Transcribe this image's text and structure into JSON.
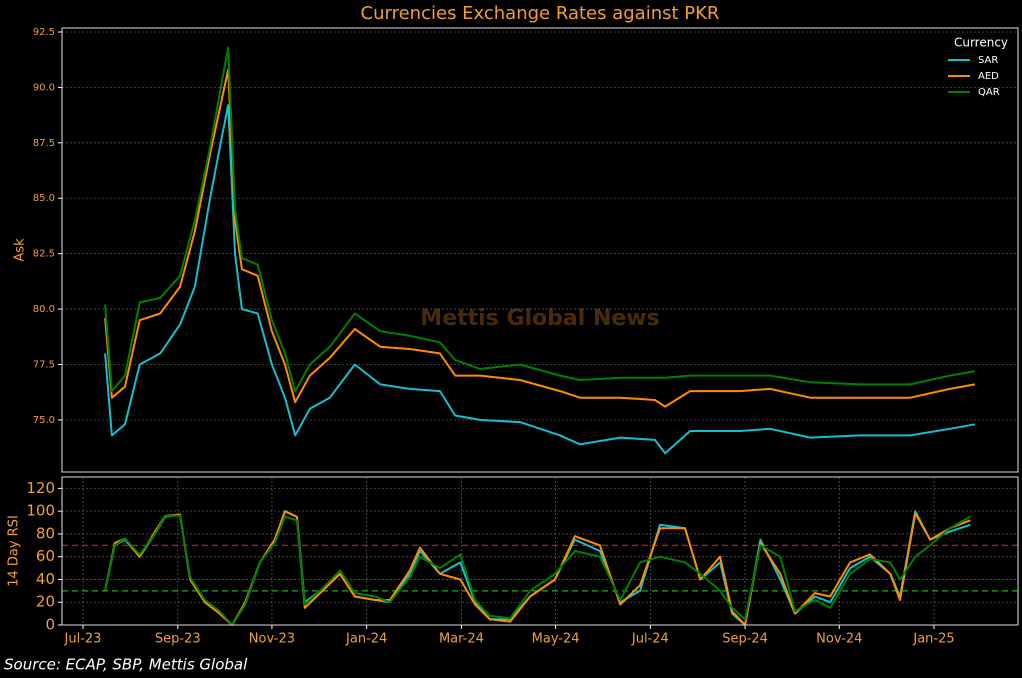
{
  "chart_data": [
    {
      "type": "line",
      "title": "Currencies Exchange Rates against PKR",
      "y_label": "Ask",
      "legend_title": "Currency",
      "legend": "upper right",
      "grid": true,
      "watermark": "Mettis Global News",
      "xlim": [
        2023.463,
        2025.148
      ],
      "ylim": [
        72.65,
        92.68
      ],
      "yticks": [
        {
          "value": 75,
          "label": "75.0"
        },
        77.5,
        {
          "value": 80,
          "label": "80.0"
        },
        82.5,
        {
          "value": 85,
          "label": "85.0"
        },
        87.5,
        {
          "value": 90,
          "label": "90.0"
        },
        92.5
      ],
      "x": [
        2023.539,
        2023.551,
        2023.574,
        2023.6,
        2023.636,
        2023.671,
        2023.697,
        2023.724,
        2023.745,
        2023.756,
        2023.768,
        2023.78,
        2023.808,
        2023.833,
        2023.856,
        2023.874,
        2023.9,
        2023.935,
        2023.979,
        2024.024,
        2024.076,
        2024.129,
        2024.156,
        2024.2,
        2024.27,
        2024.341,
        2024.376,
        2024.447,
        2024.508,
        2024.526,
        2024.57,
        2024.658,
        2024.711,
        2024.782,
        2024.87,
        2024.958,
        2025.028,
        2025.072
      ],
      "series": [
        {
          "name": "SAR",
          "color": "#17becf",
          "values": [
            78.0,
            74.3,
            74.8,
            77.5,
            78.0,
            79.3,
            81.0,
            85.0,
            87.8,
            89.2,
            82.5,
            80.0,
            79.8,
            77.5,
            76.0,
            74.3,
            75.5,
            76.0,
            77.5,
            76.6,
            76.4,
            76.3,
            75.2,
            75.0,
            74.9,
            74.3,
            73.9,
            74.2,
            74.1,
            73.5,
            74.5,
            74.5,
            74.6,
            74.2,
            74.3,
            74.3,
            74.6,
            74.8
          ]
        },
        {
          "name": "AED",
          "color": "#ff8c00",
          "values": [
            79.6,
            76.0,
            76.5,
            79.5,
            79.8,
            81.0,
            83.5,
            87.0,
            89.5,
            90.8,
            84.0,
            81.8,
            81.5,
            79.0,
            77.5,
            75.8,
            77.0,
            77.8,
            79.1,
            78.3,
            78.2,
            78.0,
            77.0,
            77.0,
            76.8,
            76.3,
            76.0,
            76.0,
            75.9,
            75.6,
            76.3,
            76.3,
            76.4,
            76.0,
            76.0,
            76.0,
            76.4,
            76.6
          ]
        },
        {
          "name": "QAR",
          "color": "#008000",
          "values": [
            80.2,
            76.3,
            77.0,
            80.3,
            80.5,
            81.5,
            84.0,
            87.3,
            90.3,
            91.8,
            84.5,
            82.3,
            82.0,
            79.5,
            78.0,
            76.3,
            77.5,
            78.3,
            79.8,
            79.0,
            78.8,
            78.5,
            77.7,
            77.3,
            77.5,
            77.0,
            76.8,
            76.9,
            76.9,
            76.9,
            77.0,
            77.0,
            77.0,
            76.7,
            76.6,
            76.6,
            77.0,
            77.2
          ]
        }
      ]
    },
    {
      "type": "line",
      "y_label": "14 Day RSI",
      "grid": true,
      "source": "Source: ECAP, SBP, Mettis Global",
      "xlim": [
        2023.463,
        2025.148
      ],
      "ylim": [
        0,
        130
      ],
      "yticks": [
        0,
        20,
        40,
        60,
        80,
        100,
        120
      ],
      "xticks": [
        {
          "value": 2023.5,
          "label": "Jul-23"
        },
        {
          "value": 2023.667,
          "label": "Sep-23"
        },
        {
          "value": 2023.833,
          "label": "Nov-23"
        },
        {
          "value": 2024,
          "label": "Jan-24"
        },
        {
          "value": 2024.167,
          "label": "Mar-24"
        },
        {
          "value": 2024.333,
          "label": "May-24"
        },
        {
          "value": 2024.5,
          "label": "Jul-24"
        },
        {
          "value": 2024.667,
          "label": "Sep-24"
        },
        {
          "value": 2024.833,
          "label": "Nov-24"
        },
        {
          "value": 2025,
          "label": "Jan-25"
        }
      ],
      "hlines": [
        {
          "value": 70,
          "color": "#cc2222"
        },
        {
          "value": 30,
          "color": "#22aa22"
        }
      ],
      "x": [
        2023.539,
        2023.556,
        2023.574,
        2023.6,
        2023.627,
        2023.645,
        2023.671,
        2023.689,
        2023.715,
        2023.741,
        2023.763,
        2023.786,
        2023.812,
        2023.838,
        2023.856,
        2023.877,
        2023.891,
        2023.918,
        2023.953,
        2023.979,
        2024.015,
        2024.041,
        2024.076,
        2024.094,
        2024.129,
        2024.165,
        2024.191,
        2024.217,
        2024.253,
        2024.288,
        2024.332,
        2024.367,
        2024.411,
        2024.447,
        2024.482,
        2024.517,
        2024.561,
        2024.588,
        2024.623,
        2024.644,
        2024.667,
        2024.694,
        2024.729,
        2024.755,
        2024.79,
        2024.817,
        2024.852,
        2024.887,
        2024.923,
        2024.94,
        2024.967,
        2024.993,
        2025.028,
        2025.064
      ],
      "series": [
        {
          "name": "SAR",
          "color": "#17becf",
          "values": [
            30,
            70,
            75,
            60,
            80,
            95,
            97,
            40,
            20,
            10,
            0,
            20,
            55,
            75,
            100,
            95,
            20,
            30,
            45,
            25,
            22,
            20,
            45,
            65,
            45,
            55,
            20,
            5,
            5,
            25,
            40,
            75,
            65,
            20,
            30,
            88,
            85,
            40,
            55,
            10,
            0,
            75,
            40,
            10,
            25,
            20,
            50,
            60,
            45,
            25,
            100,
            75,
            82,
            88
          ]
        },
        {
          "name": "AED",
          "color": "#ff8c00",
          "values": [
            30,
            72,
            76,
            60,
            82,
            96,
            97,
            40,
            20,
            10,
            0,
            20,
            55,
            75,
            100,
            95,
            15,
            28,
            45,
            25,
            22,
            22,
            48,
            68,
            45,
            40,
            18,
            5,
            3,
            25,
            40,
            78,
            70,
            18,
            35,
            85,
            85,
            40,
            60,
            12,
            0,
            72,
            45,
            10,
            28,
            25,
            55,
            62,
            45,
            22,
            98,
            75,
            85,
            92
          ]
        },
        {
          "name": "QAR",
          "color": "#008000",
          "values": [
            30,
            70,
            76,
            62,
            80,
            96,
            96,
            42,
            22,
            12,
            0,
            18,
            55,
            72,
            95,
            92,
            18,
            30,
            48,
            28,
            25,
            20,
            42,
            60,
            50,
            62,
            22,
            8,
            6,
            30,
            45,
            65,
            60,
            22,
            55,
            60,
            55,
            45,
            30,
            15,
            5,
            70,
            60,
            12,
            22,
            15,
            45,
            58,
            55,
            40,
            60,
            70,
            85,
            95
          ]
        }
      ]
    }
  ]
}
